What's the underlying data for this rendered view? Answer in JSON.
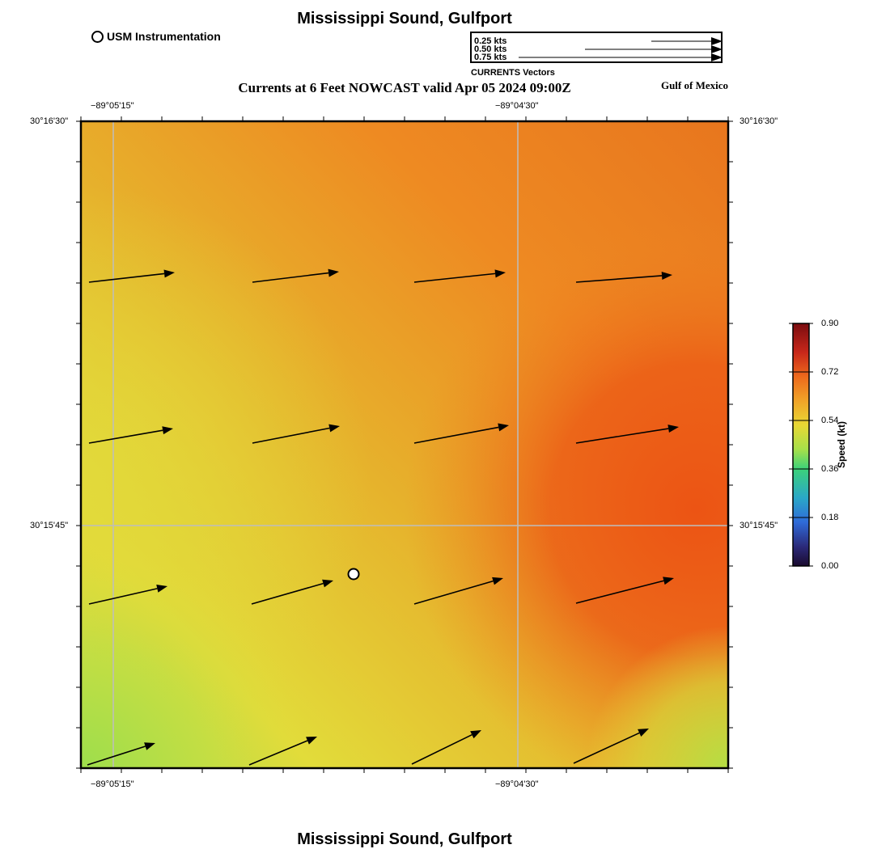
{
  "header": {
    "title": "Mississippi Sound, Gulfport",
    "subtitle": "Currents at 6 Feet NOWCAST valid Apr 05 2024 09:00Z",
    "region": "Gulf of Mexico",
    "usm_label": "USM Instrumentation"
  },
  "vector_legend": {
    "caption": "CURRENTS Vectors",
    "rows": [
      "0.25 kts",
      "0.50 kts",
      "0.75 kts"
    ]
  },
  "footer": {
    "title": "Mississippi Sound, Gulfport"
  },
  "axes": {
    "lon_left": "−89°05'15\"",
    "lon_right": "−89°04'30\"",
    "lat_top": "30°16'30\"",
    "lat_mid": "30°15'45\""
  },
  "colorbar": {
    "title": "Speed (kt)",
    "ticks": [
      "0.90",
      "0.72",
      "0.54",
      "0.36",
      "0.18",
      "0.00"
    ],
    "colors": [
      "#7a0c10",
      "#c8281a",
      "#ee6a1c",
      "#f0a428",
      "#e8d834",
      "#a6e04a",
      "#3cd27a",
      "#2aa7c8",
      "#2f6ad8",
      "#2b2a7a",
      "#1a0a2e"
    ]
  },
  "map": {
    "field_colors": {
      "green": "#a6de4c",
      "yellow": "#e2dc3a",
      "gold": "#e6b22c",
      "orange": "#ee8a22",
      "red_orange": "#ec5a16"
    },
    "station": {
      "label": "USM Instrumentation"
    }
  }
}
